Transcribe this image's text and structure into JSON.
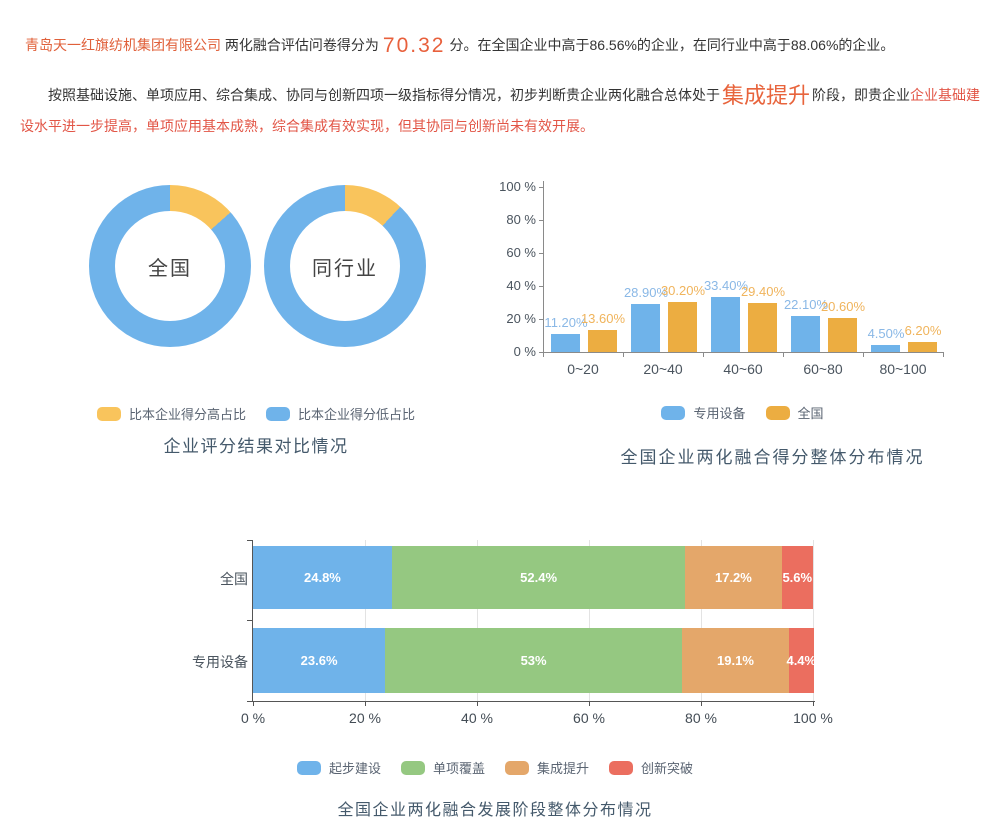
{
  "report": {
    "p1": {
      "company": "青岛天一红旗纺机集团有限公司",
      "mid": " 两化融合评估问卷得分为",
      "score": "70.32",
      "tail": "分。在全国企业中高于86.56%的企业，在同行业中高于88.06%的企业。"
    },
    "p2": {
      "lead": "按照基础设施、单项应用、综合集成、协同与创新四项一级指标得分情况，初步判断贵企业两化融合总体处于",
      "stage": "集成提升",
      "mid": "阶段，即贵企业",
      "tail": "企业基础建设水平进一步提高，单项应用基本成熟，综合集成有效实现，但其协同与创新尚未有效开展。"
    }
  },
  "colors": {
    "blue": "#6fb3ea",
    "donut_yellow": "#f9c45c",
    "bar_orange": "#ecad41",
    "green": "#95c881",
    "stack_tan": "#e4a76a",
    "stack_red": "#eb6e5f",
    "accent_text": "#e8603c",
    "red_text": "#e25546",
    "title_text": "#44596b"
  },
  "chart_data": [
    {
      "type": "pie",
      "variant": "donut-pair",
      "title": "企业评分结果对比情况",
      "legend": [
        {
          "label": "比本企业得分高占比",
          "color": "#f9c45c"
        },
        {
          "label": "比本企业得分低占比",
          "color": "#6fb3ea"
        }
      ],
      "donuts": [
        {
          "center_label": "全国",
          "slices": [
            {
              "name": "比本企业得分高占比",
              "value": 13.44
            },
            {
              "name": "比本企业得分低占比",
              "value": 86.56
            }
          ]
        },
        {
          "center_label": "同行业",
          "slices": [
            {
              "name": "比本企业得分高占比",
              "value": 11.94
            },
            {
              "name": "比本企业得分低占比",
              "value": 88.06
            }
          ]
        }
      ]
    },
    {
      "type": "bar",
      "title": "全国企业两化融合得分整体分布情况",
      "categories": [
        "0~20",
        "20~40",
        "40~60",
        "60~80",
        "80~100"
      ],
      "series": [
        {
          "name": "专用设备",
          "color": "#6fb3ea",
          "label_color": "#8ab8e6",
          "values": [
            11.2,
            28.9,
            33.4,
            22.1,
            4.5
          ],
          "labels": [
            "11.20%",
            "28.90%",
            "33.40%",
            "22.10%",
            "4.50%"
          ]
        },
        {
          "name": "全国",
          "color": "#ecad41",
          "label_color": "#f0b45c",
          "values": [
            13.6,
            30.2,
            29.4,
            20.6,
            6.2
          ],
          "labels": [
            "13.60%",
            "30.20%",
            "29.40%",
            "20.60%",
            "6.20%"
          ]
        }
      ],
      "ylim": [
        0,
        100
      ],
      "yticks": [
        "0 %",
        "20 %",
        "40 %",
        "60 %",
        "80 %",
        "100 %"
      ],
      "legend_position": "bottom",
      "grid": false
    },
    {
      "type": "bar",
      "variant": "horizontal-stacked",
      "title": "全国企业两化融合发展阶段整体分布情况",
      "categories": [
        "全国",
        "专用设备"
      ],
      "series": [
        {
          "name": "起步建设",
          "color": "#6fb3ea",
          "values": [
            24.8,
            23.6
          ],
          "labels": [
            "24.8%",
            "23.6%"
          ]
        },
        {
          "name": "单项覆盖",
          "color": "#95c881",
          "values": [
            52.4,
            53
          ],
          "labels": [
            "52.4%",
            "53%"
          ]
        },
        {
          "name": "集成提升",
          "color": "#e4a76a",
          "values": [
            17.2,
            19.1
          ],
          "labels": [
            "17.2%",
            "19.1%"
          ]
        },
        {
          "name": "创新突破",
          "color": "#eb6e5f",
          "values": [
            5.6,
            4.4
          ],
          "labels": [
            "5.6%",
            "4.4%"
          ]
        }
      ],
      "xlim": [
        0,
        100
      ],
      "xticks": [
        "0 %",
        "20 %",
        "40 %",
        "60 %",
        "80 %",
        "100 %"
      ],
      "legend_position": "bottom",
      "grid": true
    }
  ]
}
